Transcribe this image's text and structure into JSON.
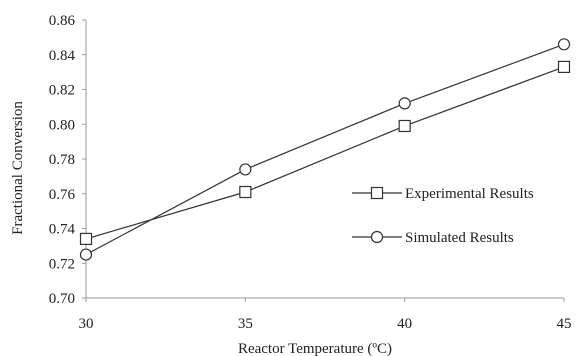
{
  "chart_data": {
    "type": "line",
    "title": "",
    "xlabel": "Reactor Temperature (ºC)",
    "ylabel": "Fractional Conversion",
    "x": [
      30,
      35,
      40,
      45
    ],
    "xlim": [
      30,
      45
    ],
    "ylim": [
      0.7,
      0.86
    ],
    "x_ticks": [
      "30",
      "35",
      "40",
      "45"
    ],
    "y_ticks": [
      "0.70",
      "0.72",
      "0.74",
      "0.76",
      "0.78",
      "0.80",
      "0.82",
      "0.84",
      "0.86"
    ],
    "grid": false,
    "legend_position": "right",
    "series": [
      {
        "name": "Experimental Results",
        "marker": "square",
        "values": [
          0.734,
          0.761,
          0.799,
          0.833
        ]
      },
      {
        "name": "Simulated Results",
        "marker": "circle",
        "values": [
          0.725,
          0.774,
          0.812,
          0.846
        ]
      }
    ],
    "colors": {
      "line": "#333333",
      "axis": "#999999",
      "marker_fill": "#ffffff"
    }
  }
}
